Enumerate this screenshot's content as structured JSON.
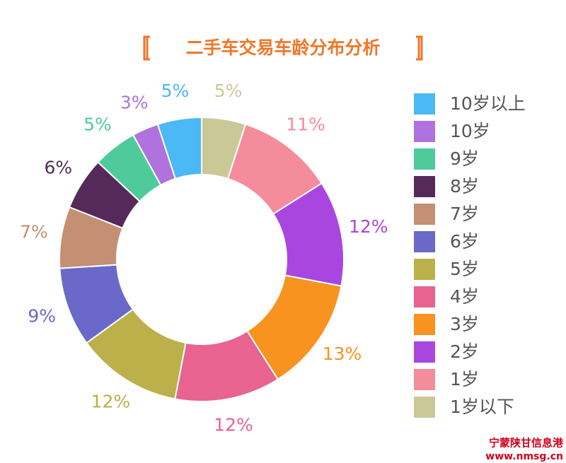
{
  "chart_data": {
    "type": "donut",
    "title": "二手车交易车龄分布分析",
    "categories": [
      "1岁以下",
      "1岁",
      "2岁",
      "3岁",
      "4岁",
      "5岁",
      "6岁",
      "7岁",
      "8岁",
      "9岁",
      "10岁",
      "10岁以上"
    ],
    "values": [
      5,
      11,
      12,
      13,
      12,
      12,
      9,
      7,
      6,
      5,
      3,
      5
    ],
    "value_labels": [
      "5%",
      "11%",
      "12%",
      "13%",
      "12%",
      "12%",
      "9%",
      "7%",
      "6%",
      "5%",
      "3%",
      "5%"
    ],
    "colors": [
      "#cbc898",
      "#f58c9c",
      "#a946e0",
      "#f7931e",
      "#e8638f",
      "#bbb04a",
      "#6a68c8",
      "#c48f73",
      "#552a5a",
      "#4fcb9b",
      "#b072de",
      "#4ab9f5"
    ],
    "legend": "right",
    "annotations": [
      "宁蒙陕甘信息港",
      "www.nmsg.cn"
    ]
  }
}
